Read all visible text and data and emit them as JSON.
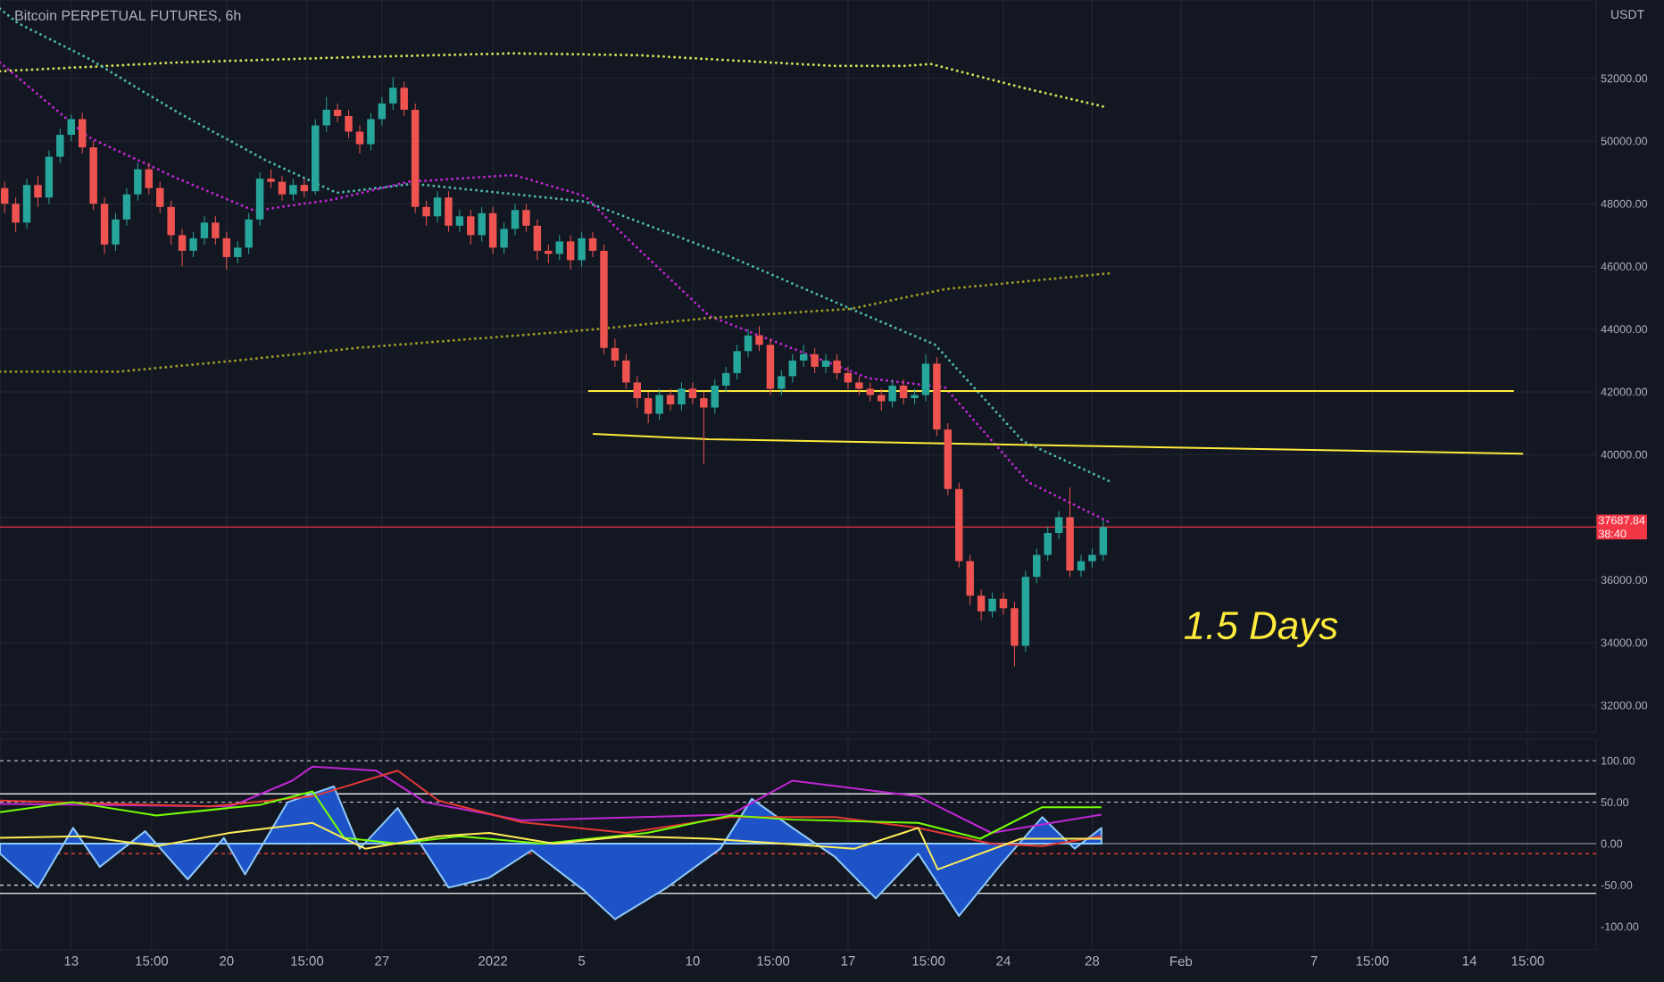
{
  "chart_data": [
    {
      "type": "candlestick",
      "title": "Bitcoin PERPETUAL FUTURES, 6h",
      "ylabel": "USDT",
      "tick_labels": "y",
      "grid": true,
      "x": [
        "2021-12-10T00:00",
        "2021-12-10T12:00",
        "2021-12-11T00:00",
        "2021-12-11T12:00",
        "2021-12-12T00:00",
        "2021-12-12T12:00",
        "2021-12-13T00:00",
        "2021-12-13T12:00",
        "2021-12-14T00:00",
        "2021-12-14T12:00",
        "2021-12-15T00:00",
        "2021-12-15T12:00",
        "2021-12-16T00:00",
        "2021-12-16T12:00",
        "2021-12-17T00:00",
        "2021-12-17T12:00",
        "2021-12-18T00:00",
        "2021-12-18T12:00",
        "2021-12-19T00:00",
        "2021-12-19T12:00",
        "2021-12-20T00:00",
        "2021-12-20T12:00",
        "2021-12-21T00:00",
        "2021-12-21T12:00",
        "2021-12-22T00:00",
        "2021-12-22T12:00",
        "2021-12-23T00:00",
        "2021-12-23T12:00",
        "2021-12-24T00:00",
        "2021-12-24T12:00",
        "2021-12-25T00:00",
        "2021-12-25T12:00",
        "2021-12-26T00:00",
        "2021-12-26T12:00",
        "2021-12-27T00:00",
        "2021-12-27T12:00",
        "2021-12-28T00:00",
        "2021-12-28T12:00",
        "2021-12-29T00:00",
        "2021-12-29T12:00",
        "2021-12-30T00:00",
        "2021-12-30T12:00",
        "2021-12-31T00:00",
        "2021-12-31T12:00",
        "2022-01-01T00:00",
        "2022-01-01T12:00",
        "2022-01-02T00:00",
        "2022-01-02T12:00",
        "2022-01-03T00:00",
        "2022-01-03T12:00",
        "2022-01-04T00:00",
        "2022-01-04T12:00",
        "2022-01-05T00:00",
        "2022-01-05T12:00",
        "2022-01-06T00:00",
        "2022-01-06T12:00",
        "2022-01-07T00:00",
        "2022-01-07T12:00",
        "2022-01-08T00:00",
        "2022-01-08T12:00",
        "2022-01-09T00:00",
        "2022-01-09T12:00",
        "2022-01-10T00:00",
        "2022-01-10T12:00",
        "2022-01-11T00:00",
        "2022-01-11T12:00",
        "2022-01-12T00:00",
        "2022-01-12T12:00",
        "2022-01-13T00:00",
        "2022-01-13T12:00",
        "2022-01-14T00:00",
        "2022-01-14T12:00",
        "2022-01-15T00:00",
        "2022-01-15T12:00",
        "2022-01-16T00:00",
        "2022-01-16T12:00",
        "2022-01-17T00:00",
        "2022-01-17T12:00",
        "2022-01-18T00:00",
        "2022-01-18T12:00",
        "2022-01-19T00:00",
        "2022-01-19T12:00",
        "2022-01-20T00:00",
        "2022-01-20T12:00",
        "2022-01-21T00:00",
        "2022-01-21T12:00",
        "2022-01-22T00:00",
        "2022-01-22T12:00",
        "2022-01-23T00:00",
        "2022-01-23T12:00",
        "2022-01-24T00:00",
        "2022-01-24T12:00",
        "2022-01-25T00:00",
        "2022-01-25T12:00",
        "2022-01-26T00:00",
        "2022-01-26T12:00",
        "2022-01-27T00:00",
        "2022-01-27T12:00",
        "2022-01-28T00:00",
        "2022-01-28T12:00"
      ],
      "ohlc": [
        [
          48500,
          48700,
          47700,
          48000
        ],
        [
          48000,
          48200,
          47100,
          47400
        ],
        [
          47400,
          48800,
          47200,
          48600
        ],
        [
          48600,
          48900,
          47900,
          48200
        ],
        [
          48200,
          49700,
          48000,
          49500
        ],
        [
          49500,
          50400,
          49300,
          50200
        ],
        [
          50200,
          50850,
          50000,
          50700
        ],
        [
          50700,
          50900,
          49600,
          49800
        ],
        [
          49800,
          50000,
          47800,
          48000
        ],
        [
          48000,
          48200,
          46400,
          46700
        ],
        [
          46700,
          47700,
          46500,
          47500
        ],
        [
          47500,
          48500,
          47300,
          48300
        ],
        [
          48300,
          49300,
          48100,
          49100
        ],
        [
          49100,
          49300,
          48300,
          48500
        ],
        [
          48500,
          48700,
          47700,
          47900
        ],
        [
          47900,
          48100,
          46700,
          47000
        ],
        [
          47000,
          47200,
          46000,
          46500
        ],
        [
          46500,
          47100,
          46300,
          46900
        ],
        [
          46900,
          47600,
          46700,
          47400
        ],
        [
          47400,
          47600,
          46700,
          46900
        ],
        [
          46900,
          47100,
          45900,
          46300
        ],
        [
          46300,
          46800,
          46100,
          46600
        ],
        [
          46600,
          47700,
          46400,
          47500
        ],
        [
          47500,
          49000,
          47300,
          48800
        ],
        [
          48800,
          49100,
          48500,
          48700
        ],
        [
          48700,
          48900,
          48100,
          48300
        ],
        [
          48300,
          48800,
          48100,
          48600
        ],
        [
          48600,
          48800,
          48200,
          48400
        ],
        [
          48400,
          50700,
          48300,
          50500
        ],
        [
          50500,
          51400,
          50300,
          51000
        ],
        [
          51000,
          51200,
          50600,
          50800
        ],
        [
          50800,
          51000,
          50100,
          50300
        ],
        [
          50300,
          50500,
          49600,
          49900
        ],
        [
          49900,
          50900,
          49700,
          50700
        ],
        [
          50700,
          51400,
          50500,
          51200
        ],
        [
          51200,
          52050,
          51000,
          51700
        ],
        [
          51700,
          51900,
          50800,
          51000
        ],
        [
          51000,
          51200,
          47700,
          47900
        ],
        [
          47900,
          48100,
          47300,
          47600
        ],
        [
          47600,
          48400,
          47400,
          48200
        ],
        [
          48200,
          48400,
          47100,
          47300
        ],
        [
          47300,
          47800,
          47100,
          47600
        ],
        [
          47600,
          47800,
          46700,
          47000
        ],
        [
          47000,
          47900,
          46800,
          47700
        ],
        [
          47700,
          47900,
          46400,
          46600
        ],
        [
          46600,
          47400,
          46400,
          47200
        ],
        [
          47200,
          48000,
          47000,
          47800
        ],
        [
          47800,
          48000,
          47100,
          47300
        ],
        [
          47300,
          47500,
          46200,
          46500
        ],
        [
          46500,
          46700,
          46100,
          46400
        ],
        [
          46400,
          47000,
          46200,
          46800
        ],
        [
          46800,
          47000,
          45900,
          46200
        ],
        [
          46200,
          47100,
          46000,
          46900
        ],
        [
          46900,
          47100,
          46300,
          46500
        ],
        [
          46500,
          46700,
          43200,
          43400
        ],
        [
          43400,
          43700,
          42800,
          43000
        ],
        [
          43000,
          43200,
          42100,
          42300
        ],
        [
          42300,
          42500,
          41500,
          41800
        ],
        [
          41800,
          42000,
          41000,
          41300
        ],
        [
          41300,
          42100,
          41100,
          41900
        ],
        [
          41900,
          42100,
          41400,
          41600
        ],
        [
          41600,
          42300,
          41400,
          42100
        ],
        [
          42100,
          42300,
          41600,
          41800
        ],
        [
          41800,
          42000,
          39700,
          41500
        ],
        [
          41500,
          42400,
          41300,
          42200
        ],
        [
          42200,
          42800,
          42000,
          42600
        ],
        [
          42600,
          43500,
          42400,
          43300
        ],
        [
          43300,
          44000,
          43100,
          43800
        ],
        [
          43800,
          44100,
          43300,
          43500
        ],
        [
          43500,
          43700,
          41900,
          42100
        ],
        [
          42100,
          42700,
          41900,
          42500
        ],
        [
          42500,
          43200,
          42300,
          43000
        ],
        [
          43000,
          43500,
          42800,
          43200
        ],
        [
          43200,
          43400,
          42600,
          42800
        ],
        [
          42800,
          43200,
          42600,
          43000
        ],
        [
          43000,
          43200,
          42400,
          42600
        ],
        [
          42600,
          42800,
          42100,
          42300
        ],
        [
          42300,
          42500,
          41900,
          42100
        ],
        [
          42100,
          42300,
          41700,
          41900
        ],
        [
          41900,
          42100,
          41400,
          41700
        ],
        [
          41700,
          42400,
          41500,
          42200
        ],
        [
          42200,
          42400,
          41600,
          41800
        ],
        [
          41800,
          42100,
          41600,
          41900
        ],
        [
          41900,
          43200,
          41700,
          42900
        ],
        [
          42900,
          43100,
          40600,
          40800
        ],
        [
          40800,
          41000,
          38700,
          38900
        ],
        [
          38900,
          39100,
          36400,
          36600
        ],
        [
          36600,
          36800,
          35200,
          35500
        ],
        [
          35500,
          35700,
          34700,
          35000
        ],
        [
          35000,
          35600,
          34800,
          35400
        ],
        [
          35400,
          35600,
          34900,
          35100
        ],
        [
          35100,
          35300,
          33250,
          33900
        ],
        [
          33900,
          36300,
          33700,
          36100
        ],
        [
          36100,
          37000,
          35900,
          36800
        ],
        [
          36800,
          37700,
          36600,
          37500
        ],
        [
          37500,
          38200,
          37300,
          38000
        ],
        [
          38000,
          38950,
          36100,
          36300
        ],
        [
          36300,
          36800,
          36100,
          36600
        ],
        [
          36600,
          37000,
          36400,
          36800
        ],
        [
          36800,
          37900,
          36600,
          37687.84
        ]
      ],
      "series": [
        {
          "type": "line",
          "line_style": "dotted",
          "color": "#d4e157",
          "x": [
            "2021-12-09T19:00",
            "2021-12-17T19:00",
            "2021-12-25T19:00",
            "2022-01-01T23:00",
            "2022-01-07T13:00",
            "2022-01-16T08:00",
            "2022-01-19T13:00",
            "2022-01-20T18:00",
            "2022-01-22T08:00",
            "2022-01-25T03:00",
            "2022-01-28T14:00"
          ],
          "values": [
            52230,
            52510,
            52680,
            52800,
            52740,
            52400,
            52400,
            52460,
            52170,
            51660,
            51090
          ]
        },
        {
          "type": "line",
          "line_style": "dotted",
          "color": "#4db6ac",
          "x": [
            "2021-12-09T19:00",
            "2021-12-10T14:00",
            "2021-12-13T19:00",
            "2021-12-17T19:00",
            "2021-12-21T19:00",
            "2021-12-24T23:00",
            "2021-12-28T10:00",
            "2022-01-05T04:00",
            "2022-01-11T13:00",
            "2022-01-17T03:00",
            "2022-01-20T22:00",
            "2022-01-24T21:00",
            "2022-01-28T21:00"
          ],
          "values": [
            54220,
            53770,
            52630,
            50920,
            49380,
            48350,
            48640,
            48070,
            46360,
            44650,
            43510,
            40430,
            39120
          ]
        },
        {
          "type": "line",
          "line_style": "dotted",
          "color": "#c026d3",
          "x": [
            "2021-12-09T19:00",
            "2021-12-13T19:00",
            "2021-12-17T19:00",
            "2021-12-21T06:00",
            "2021-12-24T18:00",
            "2021-12-28T04:00",
            "2022-01-01T23:00",
            "2022-01-05T04:00",
            "2022-01-06T18:00",
            "2022-01-10T18:00",
            "2022-01-17T23:00",
            "2022-01-21T09:00",
            "2022-01-25T03:00",
            "2022-01-28T21:00"
          ],
          "values": [
            52510,
            50120,
            48810,
            47780,
            48130,
            48700,
            48920,
            48240,
            47100,
            44420,
            42430,
            42140,
            39120,
            37810
          ]
        },
        {
          "type": "line",
          "line_style": "dotted",
          "color": "#9e9d24",
          "x": [
            "2021-12-09T19:00",
            "2021-12-15T04:00",
            "2021-12-20T10:00",
            "2021-12-25T19:00",
            "2022-01-05T04:00",
            "2022-01-10T18:00",
            "2022-01-17T03:00",
            "2022-01-21T09:00",
            "2022-01-28T21:00"
          ],
          "values": [
            42650,
            42650,
            43000,
            43400,
            43970,
            44360,
            44650,
            45280,
            45790
          ]
        },
        {
          "type": "line",
          "line_style": "solid",
          "color": "#ffeb3b",
          "x": [
            "2022-01-05T07:00",
            "2022-02-16T00:00"
          ],
          "values": [
            42030,
            42030
          ]
        },
        {
          "type": "line",
          "line_style": "solid",
          "color": "#ffeb3b",
          "x": [
            "2022-01-05T12:00",
            "2022-01-10T17:00",
            "2022-02-16T10:00"
          ],
          "values": [
            40660,
            40490,
            40030
          ]
        }
      ],
      "ref_lines": [
        {
          "axis": "y",
          "value": 37687.84,
          "label": "37687.84",
          "color": "#f23645"
        }
      ],
      "annotations": [
        "38:40",
        "1.5 Days"
      ],
      "xlim": [
        "2021-12-09T19:00",
        "2022-02-19T17:00"
      ],
      "ylim": [
        31150,
        54500
      ],
      "yticks": [
        {
          "value": 32000,
          "label": "32000.00"
        },
        {
          "value": 34000,
          "label": "34000.00"
        },
        {
          "value": 36000,
          "label": "36000.00"
        },
        {
          "value": 38000,
          "label": null
        },
        {
          "value": 40000,
          "label": "40000.00"
        },
        {
          "value": 42000,
          "label": "42000.00"
        },
        {
          "value": 44000,
          "label": "44000.00"
        },
        {
          "value": 46000,
          "label": "46000.00"
        },
        {
          "value": 48000,
          "label": "48000.00"
        },
        {
          "value": 50000,
          "label": "50000.00"
        },
        {
          "value": 52000,
          "label": "52000.00"
        }
      ],
      "xticks": [
        {
          "value": "2021-12-13",
          "label": null
        },
        {
          "value": "2021-12-16T15:00",
          "label": null
        },
        {
          "value": "2021-12-20",
          "label": null
        },
        {
          "value": "2021-12-23T15:00",
          "label": null
        },
        {
          "value": "2021-12-27",
          "label": null
        },
        {
          "value": "2022-01-01",
          "label": null
        },
        {
          "value": "2022-01-05",
          "label": null
        },
        {
          "value": "2022-01-10",
          "label": null
        },
        {
          "value": "2022-01-13T15:00",
          "label": null
        },
        {
          "value": "2022-01-17",
          "label": null
        },
        {
          "value": "2022-01-20T15:00",
          "label": null
        },
        {
          "value": "2022-01-24",
          "label": null
        },
        {
          "value": "2022-01-28",
          "label": null
        },
        {
          "value": "2022-02-01",
          "label": null
        },
        {
          "value": "2022-02-07",
          "label": null
        },
        {
          "value": "2022-02-09T15:00",
          "label": null
        },
        {
          "value": "2022-02-14",
          "label": null
        },
        {
          "value": "2022-02-16T15:00",
          "label": null
        }
      ]
    },
    {
      "type": "line",
      "grid": "x",
      "series": [
        {
          "type": "area",
          "color": "#1e53c8",
          "x": [
            "2021-12-09T19:00",
            "2021-12-11T12:00",
            "2021-12-13T02:00",
            "2021-12-14T07:00",
            "2021-12-16T08:00",
            "2021-12-18T06:00",
            "2021-12-19T21:00",
            "2021-12-20T20:00",
            "2021-12-22T18:00",
            "2021-12-24T20:00",
            "2021-12-26T00:00",
            "2021-12-27T17:00",
            "2021-12-30T00:00",
            "2021-12-31T20:00",
            "2022-01-02T18:00",
            "2022-01-05T02:00",
            "2022-01-06T12:00",
            "2022-01-08T20:00",
            "2022-01-11T06:00",
            "2022-01-12T16:00",
            "2022-01-14T12:00",
            "2022-01-16T10:00",
            "2022-01-18T06:00",
            "2022-01-20T04:00",
            "2022-01-22T00:00",
            "2022-01-23T22:00",
            "2022-01-25T18:00",
            "2022-01-27T05:00",
            "2022-01-28T10:00"
          ],
          "values": [
            -12,
            -53,
            19,
            -28,
            15,
            -43,
            7,
            -37,
            50,
            69,
            -6,
            43,
            -53,
            -41,
            -8,
            -56,
            -91,
            -53,
            -6,
            54,
            19,
            -16,
            -66,
            -12,
            -87,
            -24,
            32,
            -6,
            19
          ]
        },
        {
          "type": "line",
          "color": "#c026d3",
          "x": [
            "2021-12-09T19:00",
            "2021-12-20T05:00",
            "2021-12-22T23:00",
            "2021-12-23T21:00",
            "2021-12-26T18:00",
            "2021-12-28T23:00",
            "2022-01-02T07:00",
            "2022-01-11T17:00",
            "2022-01-14T12:00",
            "2022-01-20T04:00",
            "2022-01-23T11:00",
            "2022-01-28T10:00"
          ],
          "values": [
            48,
            45,
            76,
            93,
            88,
            50,
            28,
            35,
            76,
            57,
            13,
            35
          ]
        },
        {
          "type": "line",
          "color": "#e53935",
          "x": [
            "2021-12-09T19:00",
            "2021-12-13T13:00",
            "2021-12-19T06:00",
            "2021-12-23T21:00",
            "2021-12-27T17:00",
            "2021-12-29T13:00",
            "2022-01-02T07:00",
            "2022-01-07T00:00",
            "2022-01-11T17:00",
            "2022-01-16T10:00",
            "2022-01-20T04:00",
            "2022-01-23T11:00",
            "2022-01-25T18:00",
            "2022-01-28T10:00"
          ],
          "values": [
            52,
            49,
            45,
            57,
            88,
            52,
            26,
            13,
            32,
            32,
            19,
            0,
            -3,
            9
          ]
        },
        {
          "type": "line",
          "color": "#76ff03",
          "x": [
            "2021-12-09T19:00",
            "2021-12-13T02:00",
            "2021-12-16T20:00",
            "2021-12-21T13:00",
            "2021-12-23T21:00",
            "2021-12-25T07:00",
            "2021-12-27T17:00",
            "2021-12-30T12:00",
            "2022-01-03T06:00",
            "2022-01-07T23:00",
            "2022-01-11T17:00",
            "2022-01-14T12:00",
            "2022-01-20T04:00",
            "2022-01-22T23:00",
            "2022-01-25T18:00",
            "2022-01-28T10:00"
          ],
          "values": [
            38,
            50,
            34,
            47,
            63,
            7,
            0,
            9,
            0,
            13,
            34,
            29,
            25,
            6,
            44,
            44
          ]
        },
        {
          "type": "line",
          "color": "#ffee58",
          "x": [
            "2021-12-09T19:00",
            "2021-12-13T13:00",
            "2021-12-16T20:00",
            "2021-12-20T03:00",
            "2021-12-23T21:00",
            "2021-12-26T06:00",
            "2021-12-29T13:00",
            "2021-12-31T20:00",
            "2022-01-03T18:00",
            "2022-01-07T00:00",
            "2022-01-10T18:00",
            "2022-01-14T01:00",
            "2022-01-17T07:00",
            "2022-01-20T04:00",
            "2022-01-21T01:00",
            "2022-01-24T19:00",
            "2022-01-28T10:00"
          ],
          "values": [
            7,
            9,
            -3,
            13,
            25,
            -6,
            9,
            13,
            0,
            9,
            6,
            0,
            -6,
            19,
            -31,
            6,
            6
          ]
        }
      ],
      "ref_lines": [
        {
          "axis": "y",
          "value": 100,
          "line_style": "dotted",
          "color": "#c8c8c8"
        },
        {
          "axis": "y",
          "value": 60,
          "line_style": "solid",
          "color": "#e0e0e0"
        },
        {
          "axis": "y",
          "value": 50,
          "line_style": "dotted",
          "color": "#c8c8c8"
        },
        {
          "axis": "y",
          "value": 0,
          "line_style": "solid",
          "color": "#787b86"
        },
        {
          "axis": "y",
          "value": -12,
          "line_style": "dotted",
          "color": "#e53935"
        },
        {
          "axis": "y",
          "value": -50,
          "line_style": "dotted",
          "color": "#c8c8c8"
        },
        {
          "axis": "y",
          "value": -60,
          "line_style": "solid",
          "color": "#e0e0e0"
        }
      ],
      "xlim": [
        "2021-12-09T19:00",
        "2022-02-19T17:00"
      ],
      "ylim": [
        -128,
        126
      ],
      "yticks": [
        {
          "value": 100,
          "label": "100.00"
        },
        {
          "value": 50,
          "label": "50.00"
        },
        {
          "value": 0,
          "label": "0.00"
        },
        {
          "value": -50,
          "label": "-50.00"
        },
        {
          "value": -100,
          "label": "-100.00"
        }
      ],
      "xticks": [
        {
          "value": "2021-12-13",
          "label": "13"
        },
        {
          "value": "2021-12-16T15:00",
          "label": "15:00"
        },
        {
          "value": "2021-12-20",
          "label": "20"
        },
        {
          "value": "2021-12-23T15:00",
          "label": "15:00"
        },
        {
          "value": "2021-12-27",
          "label": "27"
        },
        {
          "value": "2022-01-01",
          "label": "2022"
        },
        {
          "value": "2022-01-05",
          "label": "5"
        },
        {
          "value": "2022-01-10",
          "label": "10"
        },
        {
          "value": "2022-01-13T15:00",
          "label": "15:00"
        },
        {
          "value": "2022-01-17",
          "label": "17"
        },
        {
          "value": "2022-01-20T15:00",
          "label": "15:00"
        },
        {
          "value": "2022-01-24",
          "label": "24"
        },
        {
          "value": "2022-01-28",
          "label": "28"
        },
        {
          "value": "2022-02-01",
          "label": "Feb"
        },
        {
          "value": "2022-02-07",
          "label": "7"
        },
        {
          "value": "2022-02-09T15:00",
          "label": "15:00"
        },
        {
          "value": "2022-02-14",
          "label": "14"
        },
        {
          "value": "2022-02-16T15:00",
          "label": "15:00"
        }
      ]
    }
  ]
}
